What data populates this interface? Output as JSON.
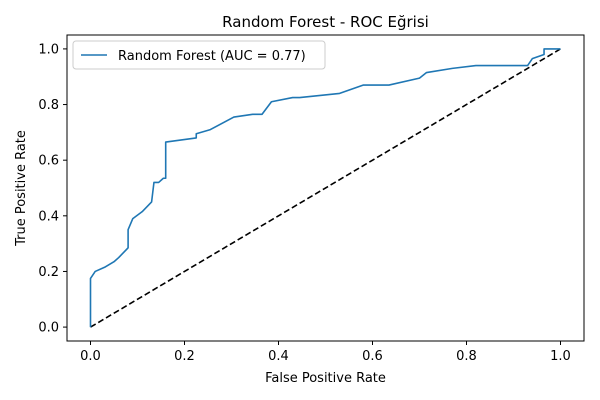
{
  "chart_data": {
    "type": "line",
    "title": "Random Forest - ROC Eğrisi",
    "xlabel": "False Positive Rate",
    "ylabel": "True Positive Rate",
    "xlim": [
      -0.05,
      1.05
    ],
    "ylim": [
      -0.05,
      1.05
    ],
    "xticks": [
      0.0,
      0.2,
      0.4,
      0.6,
      0.8,
      1.0
    ],
    "yticks": [
      0.0,
      0.2,
      0.4,
      0.6,
      0.8,
      1.0
    ],
    "xtick_labels": [
      "0.0",
      "0.2",
      "0.4",
      "0.6",
      "0.8",
      "1.0"
    ],
    "ytick_labels": [
      "0.0",
      "0.2",
      "0.4",
      "0.6",
      "0.8",
      "1.0"
    ],
    "grid": false,
    "legend_position": "upper-left",
    "series": [
      {
        "name": "Random Forest (AUC = 0.77)",
        "color": "#1f77b4",
        "style": "solid",
        "x": [
          0.0,
          0.0,
          0.01,
          0.03,
          0.05,
          0.06,
          0.08,
          0.08,
          0.09,
          0.11,
          0.13,
          0.135,
          0.145,
          0.155,
          0.16,
          0.16,
          0.225,
          0.225,
          0.255,
          0.305,
          0.345,
          0.365,
          0.385,
          0.43,
          0.445,
          0.53,
          0.58,
          0.635,
          0.7,
          0.715,
          0.77,
          0.82,
          0.93,
          0.94,
          0.965,
          0.965,
          0.99,
          1.0
        ],
        "y": [
          0.0,
          0.175,
          0.2,
          0.215,
          0.235,
          0.25,
          0.285,
          0.35,
          0.39,
          0.415,
          0.45,
          0.52,
          0.52,
          0.535,
          0.535,
          0.665,
          0.68,
          0.695,
          0.71,
          0.755,
          0.765,
          0.765,
          0.81,
          0.825,
          0.825,
          0.84,
          0.87,
          0.87,
          0.895,
          0.915,
          0.93,
          0.94,
          0.94,
          0.965,
          0.98,
          1.0,
          1.0,
          1.0
        ]
      },
      {
        "name": "",
        "color": "#000000",
        "style": "dashed",
        "x": [
          0.0,
          1.0
        ],
        "y": [
          0.0,
          1.0
        ]
      }
    ]
  }
}
